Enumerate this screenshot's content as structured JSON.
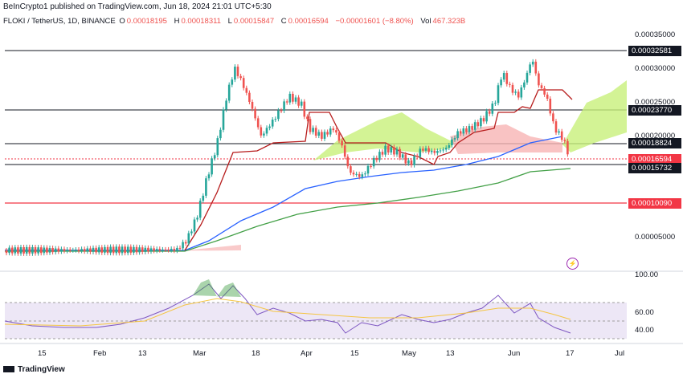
{
  "header": {
    "publisher_line": "BeInCrypto1 published on TradingView.com, Jun 18, 2024 21:01 UTC+5:30",
    "symbol": "FLOKI / TetherUS, 1D, BINANCE",
    "ohlc": [
      {
        "label": "O",
        "value": "0.00018195"
      },
      {
        "label": "H",
        "value": "0.00018311"
      },
      {
        "label": "L",
        "value": "0.00015847"
      },
      {
        "label": "C",
        "value": "0.00016594"
      },
      {
        "label": "",
        "value": "−0.00001601 (−8.80%)"
      },
      {
        "label": "Vol",
        "value": "467.323B"
      }
    ]
  },
  "price_ticks": [
    "0.00035000",
    "0.00030000",
    "0.00025000",
    "0.00020000",
    "0.00005000"
  ],
  "price_labels": [
    {
      "value": "0.00032581",
      "bg": "#131722"
    },
    {
      "value": "0.00023770",
      "bg": "#131722"
    },
    {
      "value": "0.00018824",
      "bg": "#131722"
    },
    {
      "value": "0.00016594",
      "bg": "#f23645"
    },
    {
      "value": "0.00015732",
      "bg": "#131722"
    },
    {
      "value": "0.00010090",
      "bg": "#f23645"
    }
  ],
  "rsi_ticks": [
    "100.00",
    "60.00",
    "40.00"
  ],
  "time_ticks": [
    "15",
    "Feb",
    "13",
    "Mar",
    "18",
    "Apr",
    "15",
    "May",
    "13",
    "Jun",
    "17",
    "Jul"
  ],
  "footer": {
    "brand": "TradingView"
  },
  "colors": {
    "up": "#26a69a",
    "down": "#ef5350",
    "cloud_bull": "#c8f07a",
    "cloud_bear": "#f7b4b4",
    "ma_blue": "#2962ff",
    "ma_green": "#43a047",
    "kijun": "#b71c1c",
    "rsi": "#7e57c2",
    "rsi_ma": "#f5c542"
  },
  "chart_data": {
    "type": "line",
    "title": "FLOKI / TetherUS, 1D, BINANCE",
    "ylim": [
      1e-05,
      0.00037
    ],
    "x": [
      "Jan 15",
      "Feb",
      "Feb 13",
      "Mar",
      "Mar 18",
      "Apr",
      "Apr 15",
      "May",
      "May 13",
      "Jun",
      "Jun 17"
    ],
    "series": [
      {
        "values": [
          1.8e-05,
          1.9e-05,
          2e-05,
          8.5e-05,
          0.000235,
          0.000215,
          0.00019,
          0.000185,
          0.0002,
          0.00028,
          0.000166
        ]
      }
    ],
    "horizontal_levels": [
      0.00032581,
      0.0002377,
      0.00018824,
      0.00015732,
      0.0001009
    ],
    "rsi": {
      "ylim": [
        20,
        100
      ],
      "bands": [
        70,
        30
      ]
    }
  }
}
